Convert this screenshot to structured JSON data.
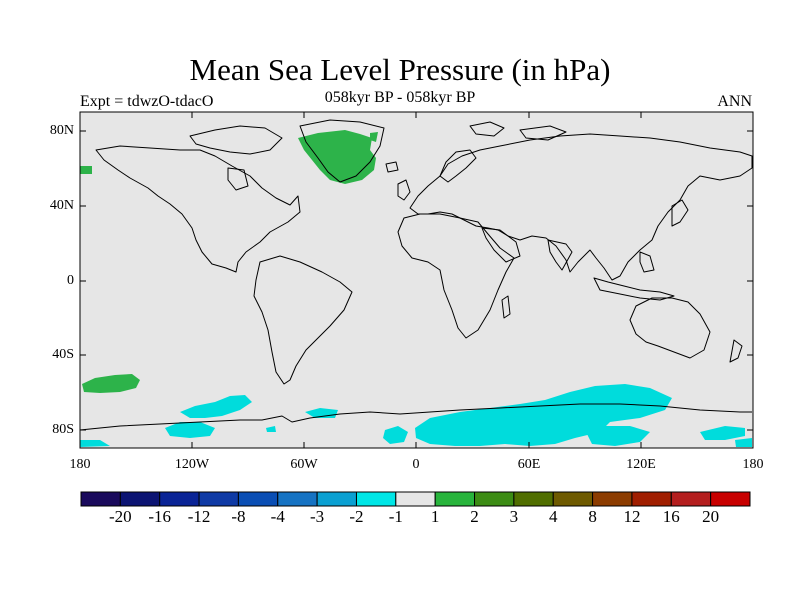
{
  "title": "Mean Sea Level Pressure (in hPa)",
  "subtitle": "058kyr BP - 058kyr BP",
  "left_label": "Expt = tdwzO-tdacO",
  "right_label": "ANN",
  "map": {
    "lat_labels": [
      "80N",
      "40N",
      "0",
      "40S",
      "80S"
    ],
    "lon_labels": [
      "180",
      "120W",
      "60W",
      "0",
      "60E",
      "120E",
      "180"
    ],
    "background_color": "#e6e6e6",
    "positive_color": "#2db34a",
    "negative_color": "#00dcdc",
    "regions": [
      {
        "name": "greenland-positive",
        "sign": "positive",
        "approx_lat": 72,
        "approx_lon": -35
      },
      {
        "name": "north-pacific-edge-positive",
        "sign": "positive",
        "approx_lat": 60,
        "approx_lon": -178
      },
      {
        "name": "south-pacific-positive",
        "sign": "positive",
        "approx_lat": -55,
        "approx_lon": -160
      },
      {
        "name": "southern-ocean-negative",
        "sign": "negative",
        "approx_lat": -70,
        "approx_lon": 60
      }
    ]
  },
  "colorbar": {
    "labels": [
      "-20",
      "-16",
      "-12",
      "-8",
      "-4",
      "-3",
      "-2",
      "-1",
      "1",
      "2",
      "3",
      "4",
      "8",
      "12",
      "16",
      "20"
    ],
    "colors": [
      "#1a0a5c",
      "#0c1473",
      "#0a2496",
      "#0f3aa5",
      "#0a4eb4",
      "#1673c3",
      "#0aa0d2",
      "#00e6e6",
      "#e6e6e6",
      "#28b43c",
      "#3c8c14",
      "#506e00",
      "#6e5a00",
      "#8c3c00",
      "#a01e00",
      "#b41e1e",
      "#c80000"
    ]
  }
}
